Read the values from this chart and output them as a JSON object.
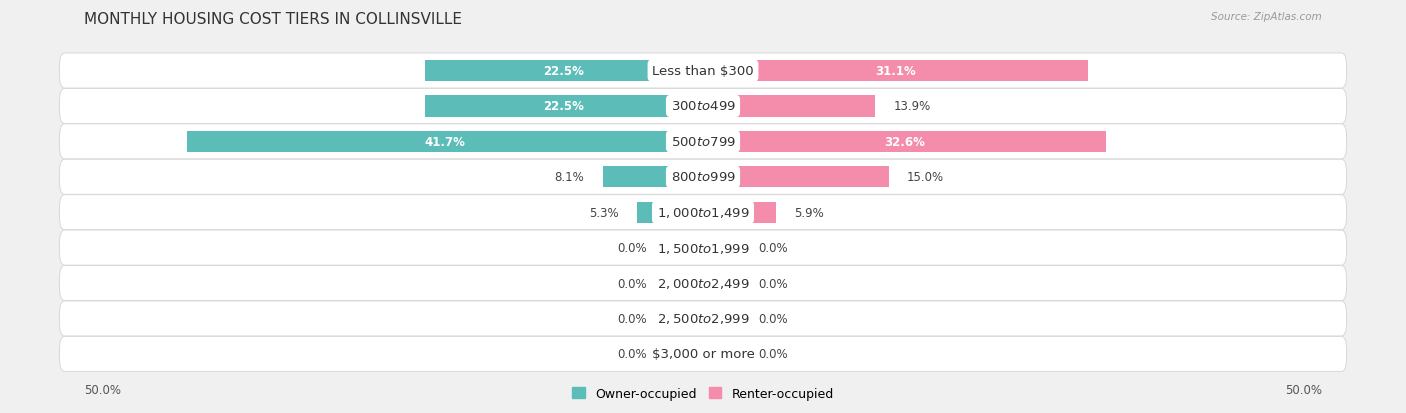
{
  "title": "MONTHLY HOUSING COST TIERS IN COLLINSVILLE",
  "source": "Source: ZipAtlas.com",
  "categories": [
    "Less than $300",
    "$300 to $499",
    "$500 to $799",
    "$800 to $999",
    "$1,000 to $1,499",
    "$1,500 to $1,999",
    "$2,000 to $2,499",
    "$2,500 to $2,999",
    "$3,000 or more"
  ],
  "owner_values": [
    22.5,
    22.5,
    41.7,
    8.1,
    5.3,
    0.0,
    0.0,
    0.0,
    0.0
  ],
  "renter_values": [
    31.1,
    13.9,
    32.6,
    15.0,
    5.9,
    0.0,
    0.0,
    0.0,
    0.0
  ],
  "owner_color": "#5bbcb8",
  "renter_color": "#f48cac",
  "background_color": "#f0f0f0",
  "row_bg_color": "#ffffff",
  "axis_max": 50.0,
  "title_fontsize": 11,
  "cat_fontsize": 9.5,
  "value_fontsize": 8.5,
  "legend_fontsize": 9,
  "source_fontsize": 7.5,
  "inside_label_threshold": 20.0,
  "zero_bar_stub": 3.0
}
